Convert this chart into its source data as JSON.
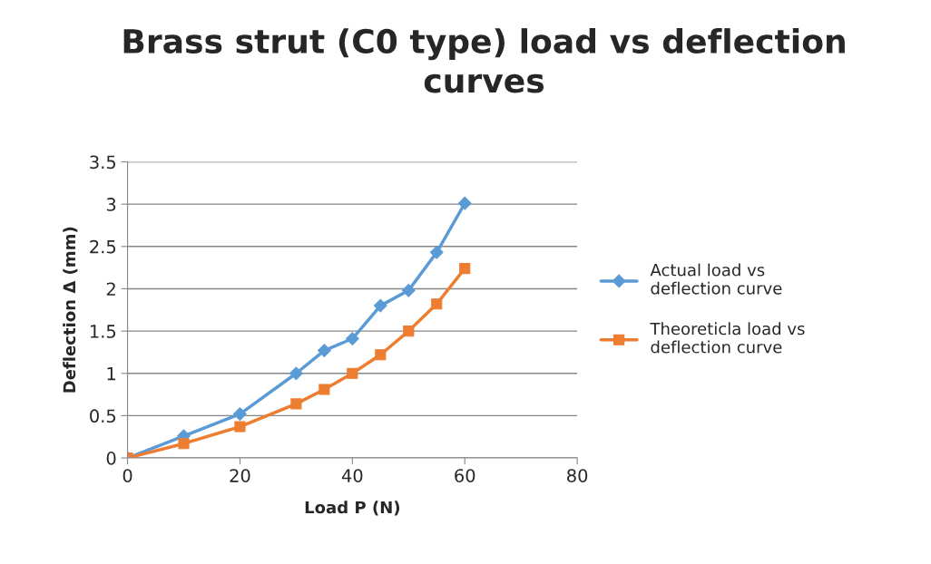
{
  "chart_data": {
    "type": "line",
    "title": "Brass strut (C0 type) load vs deflection curves",
    "xlabel": "Load P (N)",
    "ylabel": "Deflection Δ (mm)",
    "x": [
      0,
      10,
      20,
      30,
      35,
      40,
      45,
      50,
      55,
      60
    ],
    "series": [
      {
        "name": "Actual load vs deflection curve",
        "color": "#5b9bd5",
        "marker": "diamond",
        "values": [
          0,
          0.26,
          0.52,
          1.0,
          1.27,
          1.41,
          1.8,
          1.98,
          2.43,
          3.01
        ]
      },
      {
        "name": "Theoreticla load vs deflection curve",
        "color": "#ed7d31",
        "marker": "square",
        "values": [
          0,
          0.17,
          0.37,
          0.64,
          0.81,
          1.0,
          1.22,
          1.5,
          1.82,
          2.24
        ]
      }
    ],
    "xlim": [
      0,
      80
    ],
    "xticks": [
      0,
      20,
      40,
      60,
      80
    ],
    "ylim": [
      0,
      3.5
    ],
    "yticks": [
      0,
      0.5,
      1,
      1.5,
      2,
      2.5,
      3,
      3.5
    ],
    "grid": "y",
    "legend": "right",
    "line_style": "solid"
  }
}
